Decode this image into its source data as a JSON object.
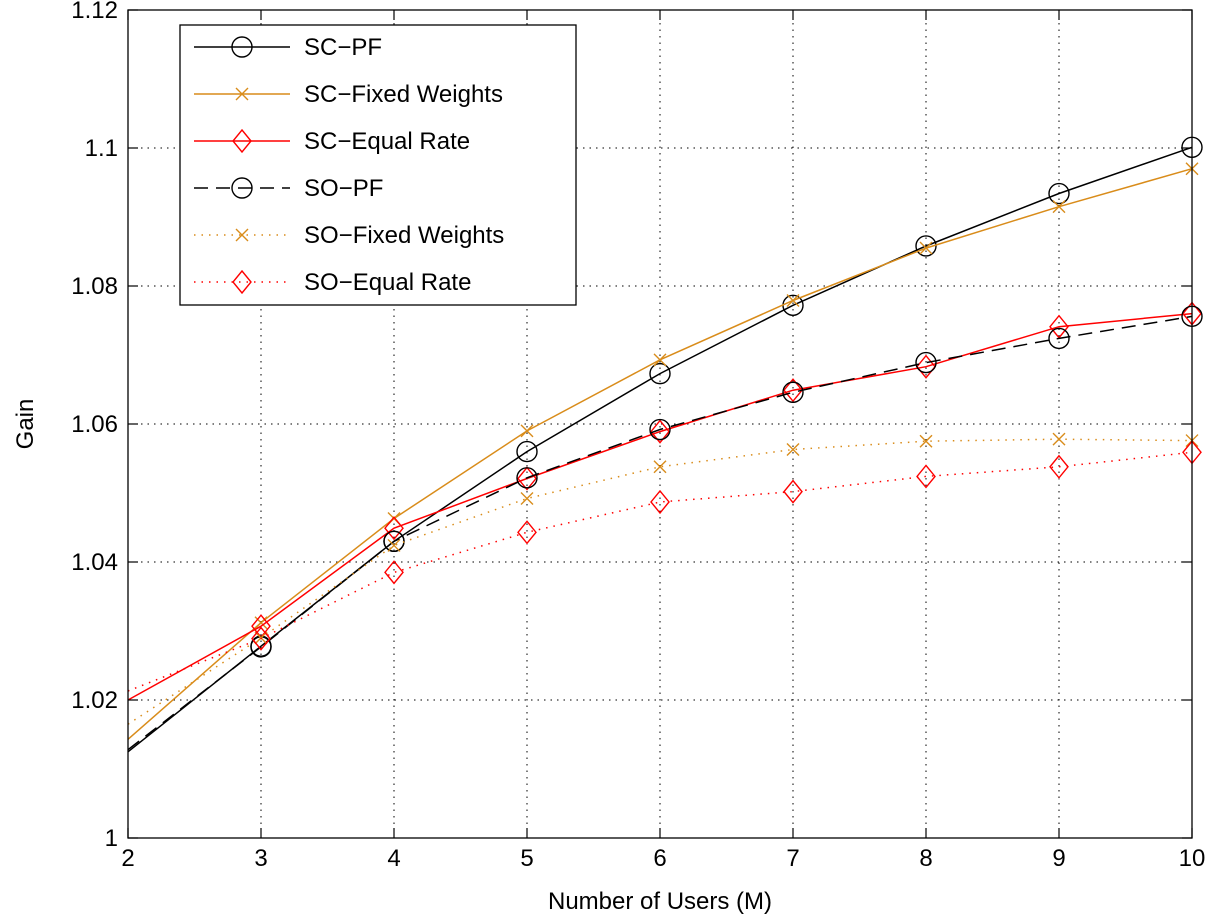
{
  "chart_data": {
    "type": "line",
    "title": "",
    "xlabel": "Number of Users (M)",
    "ylabel": "Gain",
    "xlim": [
      2,
      10
    ],
    "ylim": [
      1,
      1.12
    ],
    "xticks": [
      2,
      3,
      4,
      5,
      6,
      7,
      8,
      9,
      10
    ],
    "yticks": [
      1,
      1.02,
      1.04,
      1.06,
      1.08,
      1.1,
      1.12
    ],
    "grid": true,
    "legend_position": "top-left",
    "x": [
      2,
      3,
      4,
      5,
      6,
      7,
      8,
      9,
      10
    ],
    "series": [
      {
        "name": "SC−PF",
        "color": "#000000",
        "dash": "solid",
        "marker": "circle",
        "values": [
          1.0125,
          1.0278,
          1.043,
          1.056,
          1.0673,
          1.0772,
          1.0858,
          1.0934,
          1.1001
        ]
      },
      {
        "name": "SC−Fixed Weights",
        "color": "#d98c1a",
        "dash": "solid",
        "marker": "x",
        "values": [
          1.0143,
          1.0312,
          1.0463,
          1.059,
          1.0693,
          1.0779,
          1.0855,
          1.0915,
          1.097
        ]
      },
      {
        "name": "SC−Equal Rate",
        "color": "#ff0000",
        "dash": "solid",
        "marker": "diamond",
        "values": [
          1.02,
          1.0307,
          1.0449,
          1.0521,
          1.0589,
          1.0649,
          1.0683,
          1.0741,
          1.076
        ]
      },
      {
        "name": "SO−PF",
        "color": "#000000",
        "dash": "dashed",
        "marker": "circle-line",
        "values": [
          1.0128,
          1.0277,
          1.043,
          1.0522,
          1.0592,
          1.0646,
          1.0689,
          1.0724,
          1.0756
        ]
      },
      {
        "name": "SO−Fixed Weights",
        "color": "#d98c1a",
        "dash": "dotted",
        "marker": "x",
        "values": [
          1.0165,
          1.029,
          1.0424,
          1.0492,
          1.0538,
          1.0563,
          1.0575,
          1.0578,
          1.0576
        ]
      },
      {
        "name": "SO−Equal Rate",
        "color": "#ff0000",
        "dash": "dotted",
        "marker": "diamond",
        "values": [
          1.0213,
          1.0289,
          1.0385,
          1.0443,
          1.0487,
          1.0502,
          1.0524,
          1.0538,
          1.0559
        ]
      }
    ]
  }
}
